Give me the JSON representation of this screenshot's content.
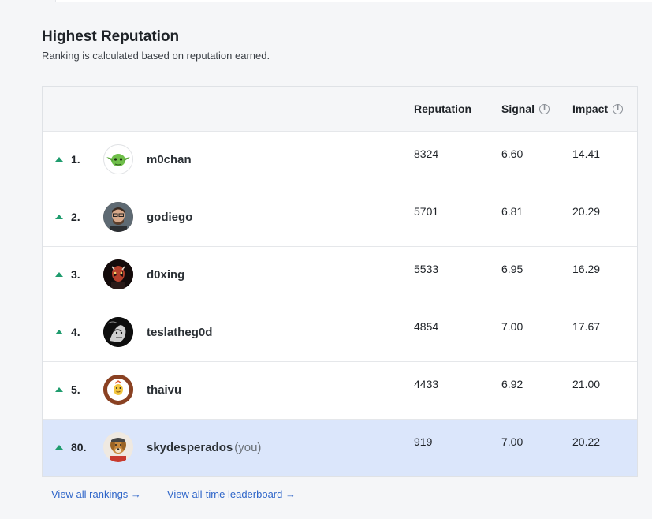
{
  "section": {
    "title": "Highest Reputation",
    "subtitle": "Ranking is calculated based on reputation earned."
  },
  "columns": {
    "reputation": "Reputation",
    "signal": "Signal",
    "impact": "Impact"
  },
  "rows": [
    {
      "rank": "1.",
      "username": "m0chan",
      "reputation": "8324",
      "signal": "6.60",
      "impact": "14.41",
      "trend": "up"
    },
    {
      "rank": "2.",
      "username": "godiego",
      "reputation": "5701",
      "signal": "6.81",
      "impact": "20.29",
      "trend": "up"
    },
    {
      "rank": "3.",
      "username": "d0xing",
      "reputation": "5533",
      "signal": "6.95",
      "impact": "16.29",
      "trend": "up"
    },
    {
      "rank": "4.",
      "username": "teslatheg0d",
      "reputation": "4854",
      "signal": "7.00",
      "impact": "17.67",
      "trend": "up"
    },
    {
      "rank": "5.",
      "username": "thaivu",
      "reputation": "4433",
      "signal": "6.92",
      "impact": "21.00",
      "trend": "up"
    },
    {
      "rank": "80.",
      "username": "skydesperados",
      "you_label": "(you)",
      "reputation": "919",
      "signal": "7.00",
      "impact": "20.22",
      "trend": "up"
    }
  ],
  "links": {
    "all_rankings": "View all rankings →",
    "all_time": "View all-time leaderboard →"
  },
  "colors": {
    "trend_up": "#1f9c6e",
    "highlight_row": "#dbe6fb",
    "link": "#2f66c9"
  }
}
